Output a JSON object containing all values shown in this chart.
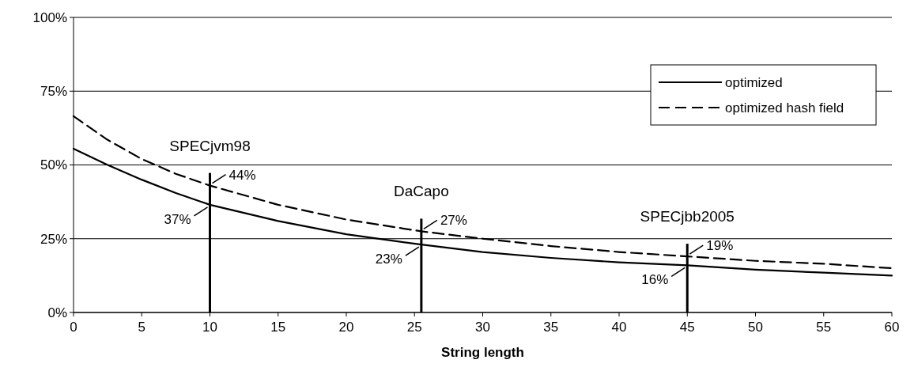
{
  "chart_data": {
    "type": "line",
    "xlabel": "String length",
    "xlim": [
      0,
      60
    ],
    "xticks": [
      0,
      5,
      10,
      15,
      20,
      25,
      30,
      35,
      40,
      45,
      50,
      55,
      60
    ],
    "ylim": [
      0,
      100
    ],
    "yticks": [
      {
        "value": 0,
        "label": "0%"
      },
      {
        "value": 25,
        "label": "25%"
      },
      {
        "value": 50,
        "label": "50%"
      },
      {
        "value": 75,
        "label": "75%"
      },
      {
        "value": 100,
        "label": "100%"
      }
    ],
    "grid": "y",
    "legend": "top right",
    "series": [
      {
        "name": "optimized",
        "color": "#000000",
        "line_style": "solid",
        "x": [
          0,
          2.5,
          5,
          7.5,
          10,
          15,
          20,
          25.5,
          30,
          35,
          40,
          45,
          50,
          55,
          60
        ],
        "values": [
          55.5,
          50,
          45,
          40.5,
          36.5,
          31,
          26.5,
          23,
          20.5,
          18.5,
          17,
          16,
          14.5,
          13.5,
          12.5
        ]
      },
      {
        "name": "optimized hash field",
        "color": "#000000",
        "line_style": "dashed",
        "x": [
          0,
          2.5,
          5,
          7.5,
          10,
          15,
          20,
          25.5,
          30,
          35,
          40,
          45,
          50,
          55,
          60
        ],
        "values": [
          66.5,
          58.5,
          52,
          47,
          43,
          36.5,
          31.5,
          27.5,
          25,
          22.5,
          20.5,
          19,
          17.5,
          16.5,
          15
        ]
      }
    ],
    "ref_lines": [
      {
        "axis": "x",
        "value": 10,
        "label": "SPECjvm98"
      },
      {
        "axis": "x",
        "value": 25.5,
        "label": "DaCapo"
      },
      {
        "axis": "x",
        "value": 45,
        "label": "SPECjbb2005"
      }
    ],
    "annotations": [
      {
        "text": "44%",
        "x": 10,
        "y": 43
      },
      {
        "text": "37%",
        "x": 10,
        "y": 36.5
      },
      {
        "text": "27%",
        "x": 25.5,
        "y": 27.5
      },
      {
        "text": "23%",
        "x": 25.5,
        "y": 23
      },
      {
        "text": "19%",
        "x": 45,
        "y": 19
      },
      {
        "text": "16%",
        "x": 45,
        "y": 16
      }
    ]
  }
}
